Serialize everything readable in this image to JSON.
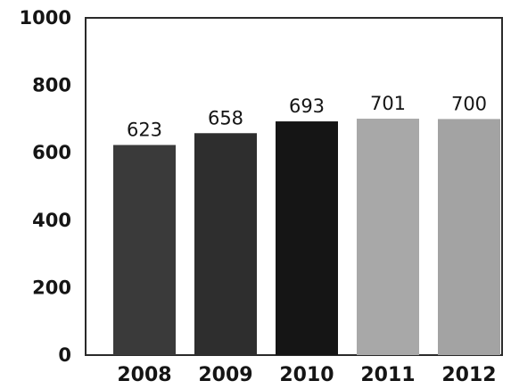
{
  "chart_data": {
    "type": "bar",
    "title": "",
    "xlabel": "",
    "ylabel": "",
    "categories": [
      "2008",
      "2009",
      "2010",
      "2011",
      "2012"
    ],
    "values": [
      623,
      658,
      693,
      701,
      700
    ],
    "value_labels": [
      "623",
      "658",
      "693",
      "701",
      "700"
    ],
    "bar_colors": [
      "#3a3a3a",
      "#2e2e2e",
      "#151515",
      "#a8a8a8",
      "#a3a3a3"
    ],
    "ylim": [
      0,
      1000
    ],
    "yticks": [
      0,
      200,
      400,
      600,
      800,
      1000
    ],
    "ytick_labels": [
      "0",
      "200",
      "400",
      "600",
      "800",
      "1000"
    ],
    "grid": false,
    "legend": "none"
  }
}
